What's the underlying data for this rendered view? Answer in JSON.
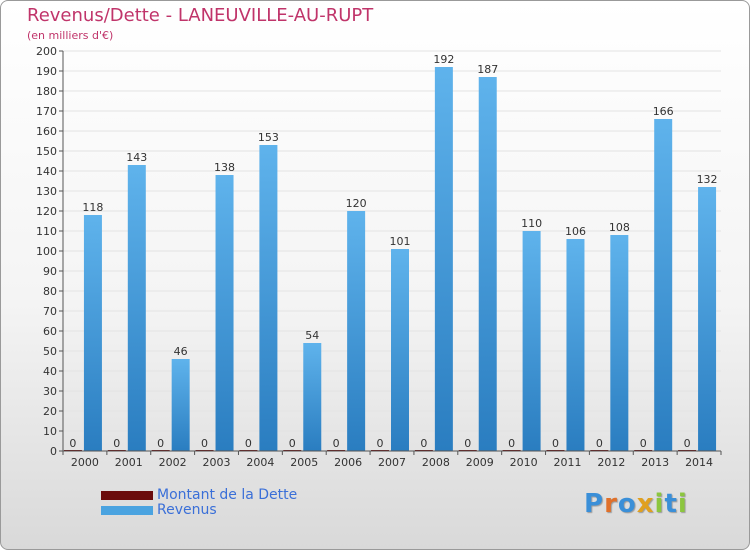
{
  "title": "Revenus/Dette - LANEUVILLE-AU-RUPT",
  "subtitle": "(en milliers d'€)",
  "legend": {
    "dette_label": "Montant de la Dette",
    "revenus_label": "Revenus"
  },
  "logo": {
    "text": "Proxiti"
  },
  "colors": {
    "dette": "#6b0c0c",
    "revenus": "#4aa3e0",
    "revenus_dark": "#2a78b8",
    "title": "#c0346a",
    "legend_text": "#3a6fd8"
  },
  "chart_data": {
    "type": "bar",
    "title": "Revenus/Dette - LANEUVILLE-AU-RUPT",
    "subtitle": "(en milliers d'€)",
    "categories": [
      "2000",
      "2001",
      "2002",
      "2003",
      "2004",
      "2005",
      "2006",
      "2007",
      "2008",
      "2009",
      "2010",
      "2011",
      "2012",
      "2013",
      "2014"
    ],
    "series": [
      {
        "name": "Montant de la Dette",
        "values": [
          0,
          0,
          0,
          0,
          0,
          0,
          0,
          0,
          0,
          0,
          0,
          0,
          0,
          0,
          0
        ]
      },
      {
        "name": "Revenus",
        "values": [
          118,
          143,
          46,
          138,
          153,
          54,
          120,
          101,
          192,
          187,
          110,
          106,
          108,
          166,
          132
        ]
      }
    ],
    "ylim": [
      0,
      200
    ],
    "ytick_step": 10,
    "grid": true,
    "legend_position": "bottom-left"
  }
}
